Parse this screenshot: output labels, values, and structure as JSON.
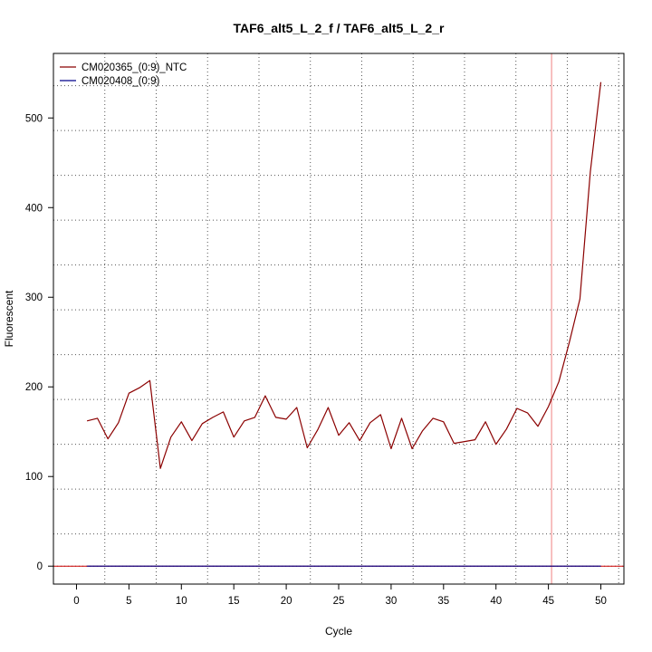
{
  "chart_data": {
    "type": "line",
    "title": "TAF6_alt5_L_2_f / TAF6_alt5_L_2_r",
    "xlabel": "Cycle",
    "ylabel": "Fluorescent",
    "xlim": [
      -2.2,
      52.2
    ],
    "ylim": [
      -20,
      572
    ],
    "x_ticks": [
      0,
      5,
      10,
      15,
      20,
      25,
      30,
      35,
      40,
      45,
      50
    ],
    "y_ticks": [
      0,
      100,
      200,
      300,
      400,
      500
    ],
    "grid": {
      "vertical_dotted_at": [
        -2.2,
        2.7,
        7.6,
        12.5,
        17.4,
        22.3,
        27.2,
        32.1,
        37.0,
        41.9,
        46.8,
        51.7
      ],
      "horizontal_dotted_at": [
        0,
        36,
        86,
        136,
        186,
        236,
        286,
        336,
        386,
        436,
        486,
        536
      ]
    },
    "threshold": {
      "value": 45.3,
      "orientation": "vertical",
      "color": "#f08080"
    },
    "baseline": {
      "value": 0,
      "color": "#cc0000"
    },
    "legend": {
      "placement": "top-left"
    },
    "series": [
      {
        "name": "CM020365_(0:9)_NTC",
        "color": "#8b0000",
        "x": [
          1,
          2,
          3,
          4,
          5,
          6,
          7,
          8,
          9,
          10,
          11,
          12,
          13,
          14,
          15,
          16,
          17,
          18,
          19,
          20,
          21,
          22,
          23,
          24,
          25,
          26,
          27,
          28,
          29,
          30,
          31,
          32,
          33,
          34,
          35,
          36,
          37,
          38,
          39,
          40,
          41,
          42,
          43,
          44,
          45,
          46,
          47,
          48,
          49,
          50
        ],
        "values": [
          162,
          165,
          142,
          160,
          193,
          199,
          207,
          109,
          144,
          161,
          140,
          159,
          166,
          172,
          144,
          162,
          166,
          190,
          166,
          164,
          177,
          132,
          152,
          177,
          146,
          160,
          140,
          160,
          169,
          131,
          165,
          131,
          151,
          165,
          161,
          137,
          139,
          141,
          161,
          136,
          153,
          176,
          171,
          156,
          178,
          206,
          250,
          298,
          440,
          540
        ]
      },
      {
        "name": "CM020408_(0:9)",
        "color": "#00008b",
        "x": [
          1,
          50
        ],
        "values": [
          0,
          0
        ]
      }
    ]
  }
}
